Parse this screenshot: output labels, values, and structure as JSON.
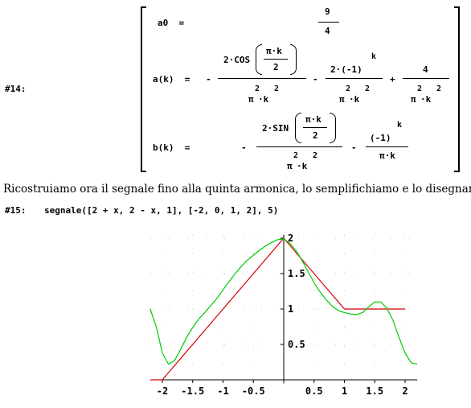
{
  "expr14": {
    "label": "#14:",
    "a0_lhs": "a0  =",
    "a0_num": "9",
    "a0_den": "4",
    "ak_lhs": "a(k)  =",
    "minus": "-",
    "plus": "+",
    "cos_fn": "2·COS",
    "pi_k": "π·k",
    "two": "2",
    "pi2k2_base_a": "π",
    "pi2k2_base_b": "·k",
    "exp2": "2",
    "term2_num": "2·(-1)",
    "exp_k": "k",
    "four": "4",
    "bk_lhs": "b(k)  =",
    "sin_fn": "2·SIN",
    "neg1": "(-1)",
    "pi_k_den": "π·k"
  },
  "text_line": "Ricostruiamo ora il segnale fino alla quinta armonica, lo semplifichiamo e lo disegnamo:",
  "expr15": {
    "label": "#15:",
    "command": "segnale([2 + x, 2 - x, 1], [-2, 0, 1, 2], 5)"
  },
  "chart_data": {
    "type": "line",
    "x_ticks": [
      "-2",
      "-1.5",
      "-1",
      "-0.5",
      "0.5",
      "1",
      "1.5",
      "2"
    ],
    "y_ticks": [
      "0.5",
      "1",
      "1.5",
      "2"
    ],
    "xlim": [
      -2.2,
      2.2
    ],
    "ylim": [
      -0.05,
      2.05
    ],
    "series": [
      {
        "color": "#d40000",
        "x": [
          -2.2,
          -2,
          0,
          1,
          2
        ],
        "y": [
          0,
          0,
          2,
          1,
          1
        ]
      },
      {
        "color": "#00cc00",
        "x": [
          -2.2,
          -2.1,
          -2.0,
          -1.9,
          -1.8,
          -1.7,
          -1.6,
          -1.5,
          -1.4,
          -1.3,
          -1.2,
          -1.1,
          -1.0,
          -0.9,
          -0.8,
          -0.7,
          -0.6,
          -0.5,
          -0.4,
          -0.3,
          -0.2,
          -0.1,
          0.0,
          0.1,
          0.2,
          0.3,
          0.4,
          0.5,
          0.6,
          0.7,
          0.8,
          0.9,
          1.0,
          1.1,
          1.2,
          1.3,
          1.4,
          1.5,
          1.6,
          1.7,
          1.8,
          1.9,
          2.0,
          2.1,
          2.2
        ],
        "y": [
          1.0,
          0.75,
          0.38,
          0.22,
          0.27,
          0.43,
          0.6,
          0.74,
          0.86,
          0.95,
          1.05,
          1.15,
          1.27,
          1.39,
          1.5,
          1.6,
          1.69,
          1.76,
          1.83,
          1.89,
          1.94,
          1.98,
          1.99,
          1.93,
          1.83,
          1.69,
          1.53,
          1.37,
          1.24,
          1.13,
          1.04,
          0.98,
          0.95,
          0.93,
          0.92,
          0.95,
          1.03,
          1.1,
          1.1,
          1.01,
          0.84,
          0.6,
          0.38,
          0.24,
          0.22
        ]
      }
    ]
  }
}
